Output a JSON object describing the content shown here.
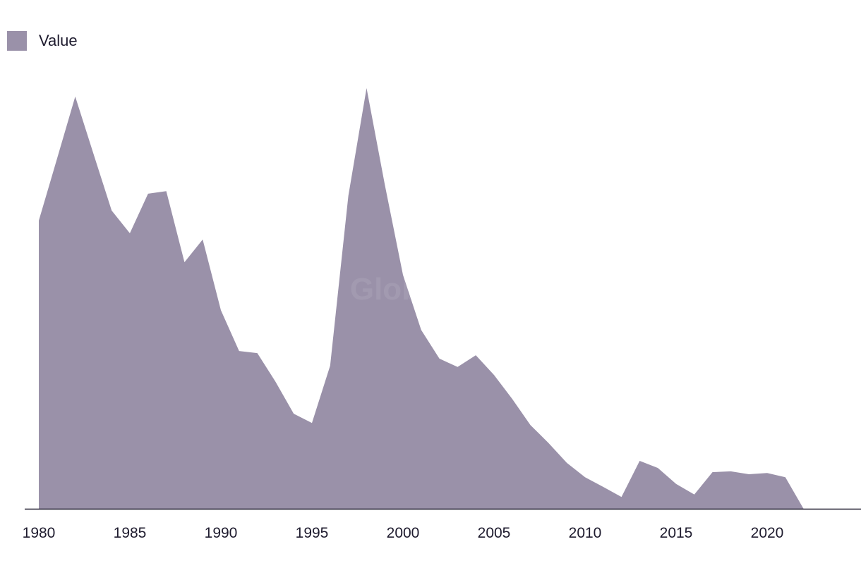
{
  "chart_data": {
    "type": "area",
    "title": "",
    "xlabel": "",
    "ylabel": "",
    "legend": {
      "position": "top-left",
      "entries": [
        "Value"
      ]
    },
    "grid": false,
    "xlim": [
      1980,
      2024.5
    ],
    "ylim": [
      0,
      100
    ],
    "x_ticks": [
      1980,
      1985,
      1990,
      1995,
      2000,
      2005,
      2010,
      2015,
      2020
    ],
    "x": [
      1980,
      1981,
      1982,
      1983,
      1984,
      1985,
      1986,
      1987,
      1988,
      1989,
      1990,
      1991,
      1992,
      1993,
      1994,
      1995,
      1996,
      1997,
      1998,
      1999,
      2000,
      2001,
      2002,
      2003,
      2004,
      2005,
      2006,
      2007,
      2008,
      2009,
      2010,
      2011,
      2012,
      2013,
      2014,
      2015,
      2016,
      2017,
      2018,
      2019,
      2020,
      2021,
      2022
    ],
    "series": [
      {
        "name": "Value",
        "color": "#9a91a9",
        "values": [
          68.5,
          83.2,
          98.0,
          84.4,
          70.9,
          65.5,
          74.9,
          75.5,
          58.6,
          64.0,
          47.2,
          37.5,
          37.0,
          30.2,
          22.6,
          20.4,
          34.0,
          74.4,
          100,
          77.1,
          55.6,
          42.5,
          35.7,
          33.7,
          36.5,
          31.8,
          26.1,
          19.9,
          15.6,
          10.9,
          7.5,
          5.2,
          2.8,
          11.4,
          9.7,
          5.9,
          3.4,
          8.7,
          8.9,
          8.2,
          8.5,
          7.5,
          0
        ]
      }
    ],
    "y_axis_labels_shown": false
  },
  "watermark": "GlobalData"
}
